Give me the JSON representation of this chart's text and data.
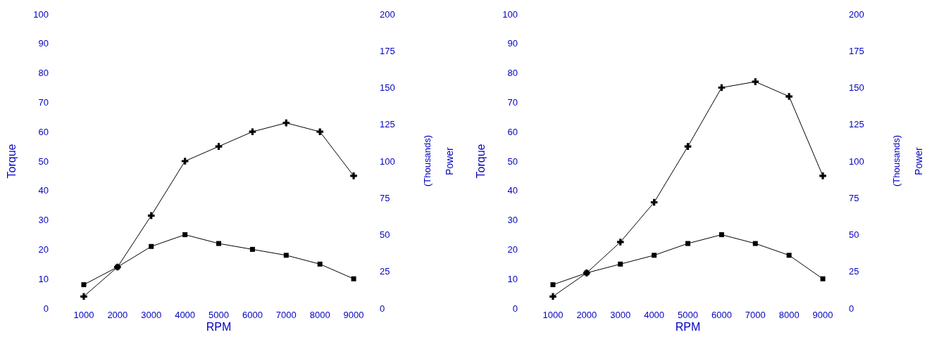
{
  "chart_data": [
    {
      "type": "line",
      "xlabel": "RPM",
      "ylabel": "Torque",
      "y2label": "Power",
      "annotations": [
        "(Thousands)"
      ],
      "categories": [
        "1000",
        "2000",
        "3000",
        "4000",
        "5000",
        "6000",
        "7000",
        "8000",
        "9000"
      ],
      "series": [
        {
          "color": "#000000",
          "marker": "square",
          "values": [
            8,
            14,
            21,
            25,
            22,
            20,
            18,
            15,
            10
          ]
        },
        {
          "color": "#000000",
          "marker": "cross",
          "axis": "y2",
          "values": [
            8,
            28,
            63,
            100,
            110,
            120,
            126,
            120,
            90
          ]
        }
      ],
      "ylim": [
        0,
        100
      ],
      "yticks": [
        0,
        10,
        20,
        30,
        40,
        50,
        60,
        70,
        80,
        90,
        100
      ],
      "y2lim": [
        0,
        200
      ],
      "y2ticks": [
        0,
        25,
        50,
        75,
        100,
        125,
        150,
        175,
        200
      ],
      "grid": false
    },
    {
      "type": "line",
      "xlabel": "RPM",
      "ylabel": "Torque",
      "y2label": "Power",
      "annotations": [
        "(Thousands)"
      ],
      "categories": [
        "1000",
        "2000",
        "3000",
        "4000",
        "5000",
        "6000",
        "7000",
        "8000",
        "9000"
      ],
      "series": [
        {
          "color": "#000000",
          "marker": "square",
          "values": [
            8,
            12,
            15,
            18,
            22,
            25,
            22,
            18,
            10
          ]
        },
        {
          "color": "#000000",
          "marker": "cross",
          "axis": "y2",
          "values": [
            8,
            24,
            45,
            72,
            110,
            150,
            154,
            144,
            90
          ]
        }
      ],
      "ylim": [
        0,
        100
      ],
      "yticks": [
        0,
        10,
        20,
        30,
        40,
        50,
        60,
        70,
        80,
        90,
        100
      ],
      "y2lim": [
        0,
        200
      ],
      "y2ticks": [
        0,
        25,
        50,
        75,
        100,
        125,
        150,
        175,
        200
      ],
      "grid": false
    }
  ]
}
